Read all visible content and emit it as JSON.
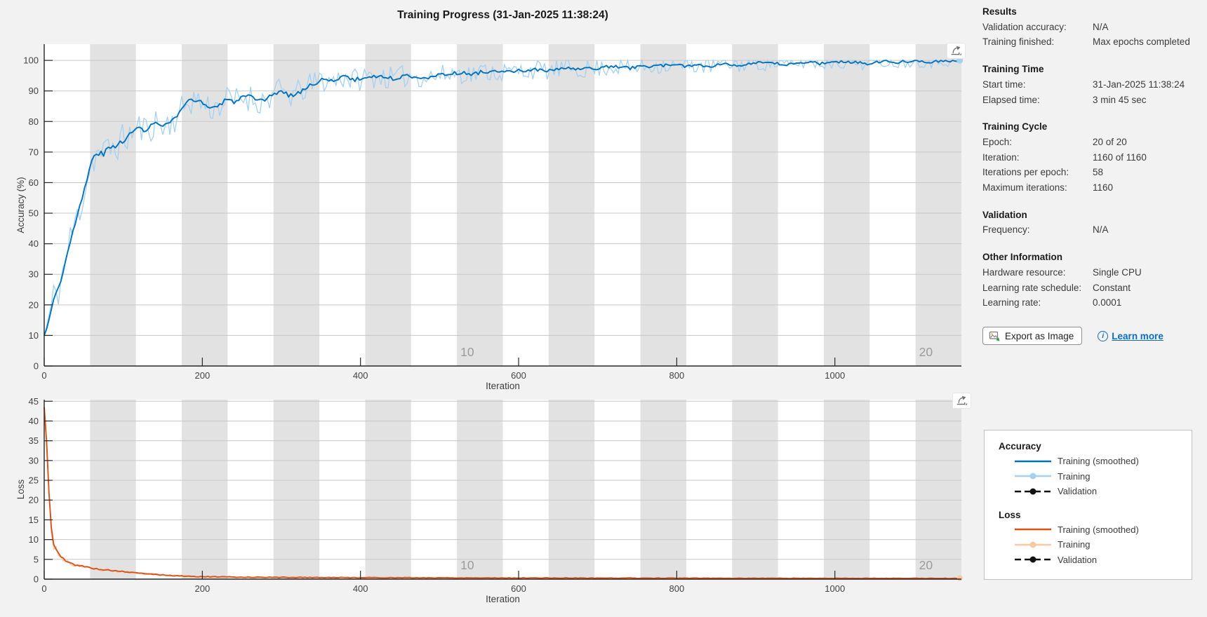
{
  "app": {
    "title": "Training Progress (31-Jan-2025 11:38:24)"
  },
  "colors": {
    "figure_bg": "#f2f2f2",
    "plot_bg": "#ffffff",
    "band": "#e2e2e2",
    "grid": "#c7c7c7",
    "axis": "#262626",
    "tick_label": "#424242",
    "epoch_label": "#9b9b9b",
    "accent_blue": "#0072bd",
    "raw_blue": "#a6d0f0",
    "accent_orange": "#d95319",
    "raw_orange": "#f8c9a2",
    "link": "#0b6dbf",
    "validation_black": "#111111"
  },
  "panel": {
    "sections": [
      {
        "title": "Results",
        "rows": [
          {
            "label": "Validation accuracy:",
            "value": "N/A"
          },
          {
            "label": "Training finished:",
            "value": "Max epochs completed"
          }
        ]
      },
      {
        "title": "Training Time",
        "rows": [
          {
            "label": "Start time:",
            "value": "31-Jan-2025 11:38:24"
          },
          {
            "label": "Elapsed time:",
            "value": "3 min 45 sec"
          }
        ]
      },
      {
        "title": "Training Cycle",
        "rows": [
          {
            "label": "Epoch:",
            "value": "20 of 20"
          },
          {
            "label": "Iteration:",
            "value": "1160 of 1160"
          },
          {
            "label": "Iterations per epoch:",
            "value": "58"
          },
          {
            "label": "Maximum iterations:",
            "value": "1160"
          }
        ]
      },
      {
        "title": "Validation",
        "rows": [
          {
            "label": "Frequency:",
            "value": "N/A"
          }
        ]
      },
      {
        "title": "Other Information",
        "rows": [
          {
            "label": "Hardware resource:",
            "value": "Single CPU"
          },
          {
            "label": "Learning rate schedule:",
            "value": "Constant"
          },
          {
            "label": "Learning rate:",
            "value": "0.0001"
          }
        ]
      }
    ],
    "export_button": {
      "label": "Export as Image"
    },
    "learn_more": {
      "label": "Learn more"
    }
  },
  "legend": {
    "sections": [
      {
        "title": "Accuracy",
        "items": [
          {
            "label": "Training (smoothed)",
            "style": "smoothed",
            "color": "#0072bd"
          },
          {
            "label": "Training",
            "style": "raw",
            "color": "#a6d0f0"
          },
          {
            "label": "Validation",
            "style": "validation",
            "color": "#111111"
          }
        ]
      },
      {
        "title": "Loss",
        "items": [
          {
            "label": "Training (smoothed)",
            "style": "smoothed",
            "color": "#d95319"
          },
          {
            "label": "Training",
            "style": "raw",
            "color": "#f8c9a2"
          },
          {
            "label": "Validation",
            "style": "validation",
            "color": "#111111"
          }
        ]
      }
    ]
  },
  "chart_data": [
    {
      "id": "accuracy",
      "type": "line",
      "ylabel": "Accuracy (%)",
      "xlabel": "Iteration",
      "xlim": [
        0,
        1160
      ],
      "ylim": [
        0,
        105.3
      ],
      "clamp": [
        0,
        100
      ],
      "yticks": [
        0,
        10,
        20,
        30,
        40,
        50,
        60,
        70,
        80,
        90,
        100
      ],
      "xticks": [
        0,
        200,
        400,
        600,
        800,
        1000
      ],
      "grid": true,
      "epochs": {
        "count": 20,
        "iterations_per_epoch": 58,
        "shaded_epochs": "even",
        "labels": [
          10,
          20
        ]
      },
      "end_marker": {
        "color": "#a6d0f0",
        "r": 4.5
      },
      "series": [
        {
          "name": "Training (smoothed)",
          "style": "smoothed",
          "color": "#0072bd",
          "line_width": 1.9,
          "seed": 3,
          "noise_amplitude": [
            [
              0,
              0.3
            ],
            [
              60,
              0.9
            ],
            [
              300,
              0.7
            ],
            [
              1160,
              0.5
            ]
          ],
          "anchors": [
            [
              0,
              10
            ],
            [
              5,
              14
            ],
            [
              10,
              20
            ],
            [
              15,
              24
            ],
            [
              20,
              27
            ],
            [
              25,
              32
            ],
            [
              30,
              38
            ],
            [
              35,
              43
            ],
            [
              40,
              47
            ],
            [
              45,
              52
            ],
            [
              50,
              57
            ],
            [
              55,
              62
            ],
            [
              60,
              67
            ],
            [
              65,
              69
            ],
            [
              70,
              70
            ],
            [
              75,
              69
            ],
            [
              80,
              71
            ],
            [
              90,
              72
            ],
            [
              100,
              74
            ],
            [
              110,
              76
            ],
            [
              120,
              78
            ],
            [
              130,
              77
            ],
            [
              140,
              80
            ],
            [
              150,
              78
            ],
            [
              160,
              80
            ],
            [
              170,
              82
            ],
            [
              180,
              86
            ],
            [
              190,
              87.5
            ],
            [
              200,
              86
            ],
            [
              210,
              84.5
            ],
            [
              220,
              85
            ],
            [
              230,
              87
            ],
            [
              240,
              86.5
            ],
            [
              250,
              88
            ],
            [
              260,
              88
            ],
            [
              270,
              86.5
            ],
            [
              280,
              87
            ],
            [
              290,
              89
            ],
            [
              300,
              90
            ],
            [
              310,
              88.5
            ],
            [
              320,
              89
            ],
            [
              330,
              91
            ],
            [
              340,
              92
            ],
            [
              350,
              94
            ],
            [
              360,
              93
            ],
            [
              370,
              94
            ],
            [
              380,
              95
            ],
            [
              390,
              93.5
            ],
            [
              400,
              94
            ],
            [
              420,
              95
            ],
            [
              440,
              94
            ],
            [
              460,
              95
            ],
            [
              480,
              94.5
            ],
            [
              500,
              95
            ],
            [
              520,
              96
            ],
            [
              540,
              95.5
            ],
            [
              560,
              96.5
            ],
            [
              580,
              96
            ],
            [
              600,
              96.5
            ],
            [
              620,
              97
            ],
            [
              640,
              96.5
            ],
            [
              660,
              97.5
            ],
            [
              680,
              97
            ],
            [
              700,
              97.5
            ],
            [
              720,
              98
            ],
            [
              740,
              97.5
            ],
            [
              760,
              98
            ],
            [
              780,
              98.5
            ],
            [
              800,
              98
            ],
            [
              820,
              98.5
            ],
            [
              840,
              98
            ],
            [
              860,
              99
            ],
            [
              880,
              98.5
            ],
            [
              900,
              99
            ],
            [
              920,
              99
            ],
            [
              940,
              98.5
            ],
            [
              960,
              99.5
            ],
            [
              980,
              99
            ],
            [
              1000,
              99.5
            ],
            [
              1020,
              99.5
            ],
            [
              1040,
              99
            ],
            [
              1060,
              99.8
            ],
            [
              1080,
              99.5
            ],
            [
              1100,
              100
            ],
            [
              1120,
              99.6
            ],
            [
              1140,
              100
            ],
            [
              1160,
              99.8
            ]
          ]
        },
        {
          "name": "Training",
          "style": "raw",
          "color": "#a6d0f0",
          "line_width": 1.3,
          "seed": 11,
          "noise_amplitude": [
            [
              0,
              7
            ],
            [
              60,
              6
            ],
            [
              150,
              5
            ],
            [
              300,
              4.5
            ],
            [
              500,
              3.5
            ],
            [
              700,
              3
            ],
            [
              900,
              2.5
            ],
            [
              1160,
              2
            ]
          ]
        },
        {
          "name": "Validation",
          "style": "validation",
          "color": "#111111",
          "values": null
        }
      ]
    },
    {
      "id": "loss",
      "type": "line",
      "ylabel": "Loss",
      "xlabel": "Iteration",
      "xlim": [
        0,
        1160
      ],
      "ylim": [
        0,
        45.4
      ],
      "clamp": [
        0.02,
        45
      ],
      "yticks": [
        0,
        5,
        10,
        15,
        20,
        25,
        30,
        35,
        40,
        45
      ],
      "xticks": [
        0,
        200,
        400,
        600,
        800,
        1000
      ],
      "grid": true,
      "epochs": {
        "count": 20,
        "iterations_per_epoch": 58,
        "shaded_epochs": "even",
        "labels": [
          10,
          20
        ]
      },
      "end_marker": {
        "color": "#f8c9a2",
        "r": 4
      },
      "series": [
        {
          "name": "Training (smoothed)",
          "style": "smoothed",
          "color": "#d95319",
          "line_width": 1.9,
          "seed": 5,
          "noise_amplitude": [
            [
              0,
              0.4
            ],
            [
              20,
              0.25
            ],
            [
              100,
              0.1
            ],
            [
              1160,
              0.05
            ]
          ],
          "anchors": [
            [
              0,
              43.5
            ],
            [
              2,
              38
            ],
            [
              4,
              31
            ],
            [
              6,
              22
            ],
            [
              8,
              15
            ],
            [
              10,
              11
            ],
            [
              12,
              9
            ],
            [
              15,
              7.5
            ],
            [
              20,
              5.8
            ],
            [
              25,
              5
            ],
            [
              30,
              4.2
            ],
            [
              40,
              3.6
            ],
            [
              50,
              3.2
            ],
            [
              60,
              2.8
            ],
            [
              70,
              2.5
            ],
            [
              80,
              2.3
            ],
            [
              90,
              2.1
            ],
            [
              100,
              1.9
            ],
            [
              120,
              1.5
            ],
            [
              140,
              1.2
            ],
            [
              160,
              0.9
            ],
            [
              180,
              0.75
            ],
            [
              200,
              0.62
            ],
            [
              250,
              0.5
            ],
            [
              300,
              0.45
            ],
            [
              400,
              0.38
            ],
            [
              500,
              0.33
            ],
            [
              600,
              0.3
            ],
            [
              700,
              0.27
            ],
            [
              800,
              0.25
            ],
            [
              900,
              0.23
            ],
            [
              1000,
              0.21
            ],
            [
              1100,
              0.2
            ],
            [
              1160,
              0.19
            ]
          ]
        },
        {
          "name": "Training",
          "style": "raw",
          "color": "#f8c9a2",
          "line_width": 1.3,
          "seed": 17,
          "noise_amplitude": [
            [
              0,
              2.5
            ],
            [
              10,
              1.8
            ],
            [
              30,
              0.8
            ],
            [
              60,
              0.5
            ],
            [
              100,
              0.35
            ],
            [
              200,
              0.2
            ],
            [
              400,
              0.15
            ],
            [
              1160,
              0.1
            ]
          ]
        },
        {
          "name": "Validation",
          "style": "validation",
          "color": "#111111",
          "values": null
        }
      ]
    }
  ]
}
